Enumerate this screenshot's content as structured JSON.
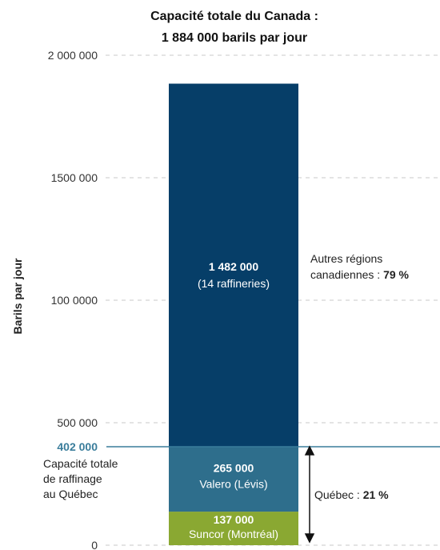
{
  "chart_data": {
    "type": "bar",
    "stacked": true,
    "title_line1": "Capacité totale du Canada :",
    "title_line2": "1 884 000 barils par jour",
    "ylabel": "Barils  par jour",
    "ylim": [
      0,
      2000000
    ],
    "grid": true,
    "y_ticks": [
      {
        "value": 0,
        "label": "0"
      },
      {
        "value": 500000,
        "label": "500 000"
      },
      {
        "value": 1000000,
        "label": "100 0000"
      },
      {
        "value": 1500000,
        "label": "1500 000"
      },
      {
        "value": 2000000,
        "label": "2 000 000"
      }
    ],
    "segments": [
      {
        "name": "Suncor (Montréal)",
        "value": 137000,
        "value_label": "137 000",
        "color": "#8aa832"
      },
      {
        "name": "Valero (Lévis)",
        "value": 265000,
        "value_label": "265 000",
        "color": "#2e6e8c"
      },
      {
        "name": "(14 raffineries)",
        "value": 1482000,
        "value_label": "1 482 000",
        "color": "#063e68"
      }
    ],
    "reference_line": {
      "value": 402000,
      "label": "402 000",
      "color": "#3a7d9b"
    },
    "annotations": {
      "quebec_total_line1": "Capacité totale",
      "quebec_total_line2": "de raffinage",
      "quebec_total_line3": "au Québec",
      "quebec_share_prefix": "Québec : ",
      "quebec_share_value": "21 %",
      "others_line1": "Autres régions",
      "others_line2_prefix": "canadiennes : ",
      "others_line2_value": "79 %"
    }
  }
}
